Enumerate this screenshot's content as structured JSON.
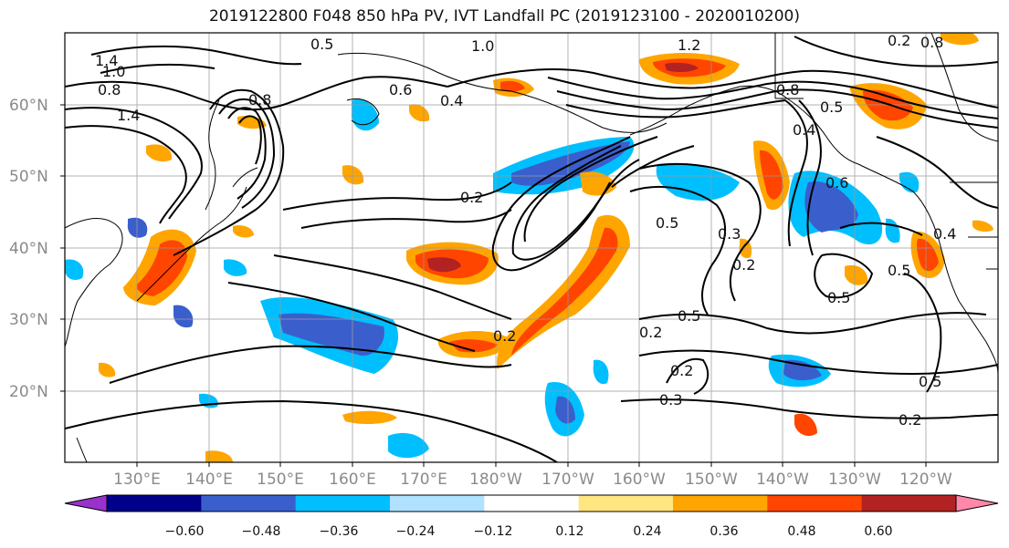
{
  "title": "2019122800 F048 850 hPa PV, IVT Landfall PC (2019123100 - 2020010200)",
  "map": {
    "lat_labels": [
      "60°N",
      "50°N",
      "40°N",
      "30°N",
      "20°N"
    ],
    "lon_labels": [
      "130°E",
      "140°E",
      "150°E",
      "160°E",
      "170°E",
      "180°W",
      "170°W",
      "160°W",
      "150°W",
      "140°W",
      "130°W",
      "120°W"
    ],
    "contour_labels": [
      "1.4",
      "1.0",
      "0.8",
      "1.4",
      "0.5",
      "1.0",
      "1.2",
      "0.8",
      "0.6",
      "0.4",
      "0.8",
      "0.2",
      "0.8",
      "0.5",
      "0.2",
      "0.4",
      "0.6",
      "0.5",
      "0.3",
      "0.2",
      "0.5",
      "0.5",
      "0.2",
      "0.2",
      "0.3",
      "0.2",
      "0.5",
      "0.2",
      "0.5",
      "0.4"
    ]
  },
  "colorbar": {
    "tick_labels": [
      "−0.60",
      "−0.48",
      "−0.36",
      "−0.24",
      "−0.12",
      "0.12",
      "0.24",
      "0.36",
      "0.48",
      "0.60"
    ],
    "colors": [
      "#9932cc",
      "#00008b",
      "#3a5fcd",
      "#00bfff",
      "#b0e2ff",
      "#ffffff",
      "#ffe680",
      "#ffa500",
      "#ff4500",
      "#b22222",
      "#ff88aa"
    ]
  }
}
